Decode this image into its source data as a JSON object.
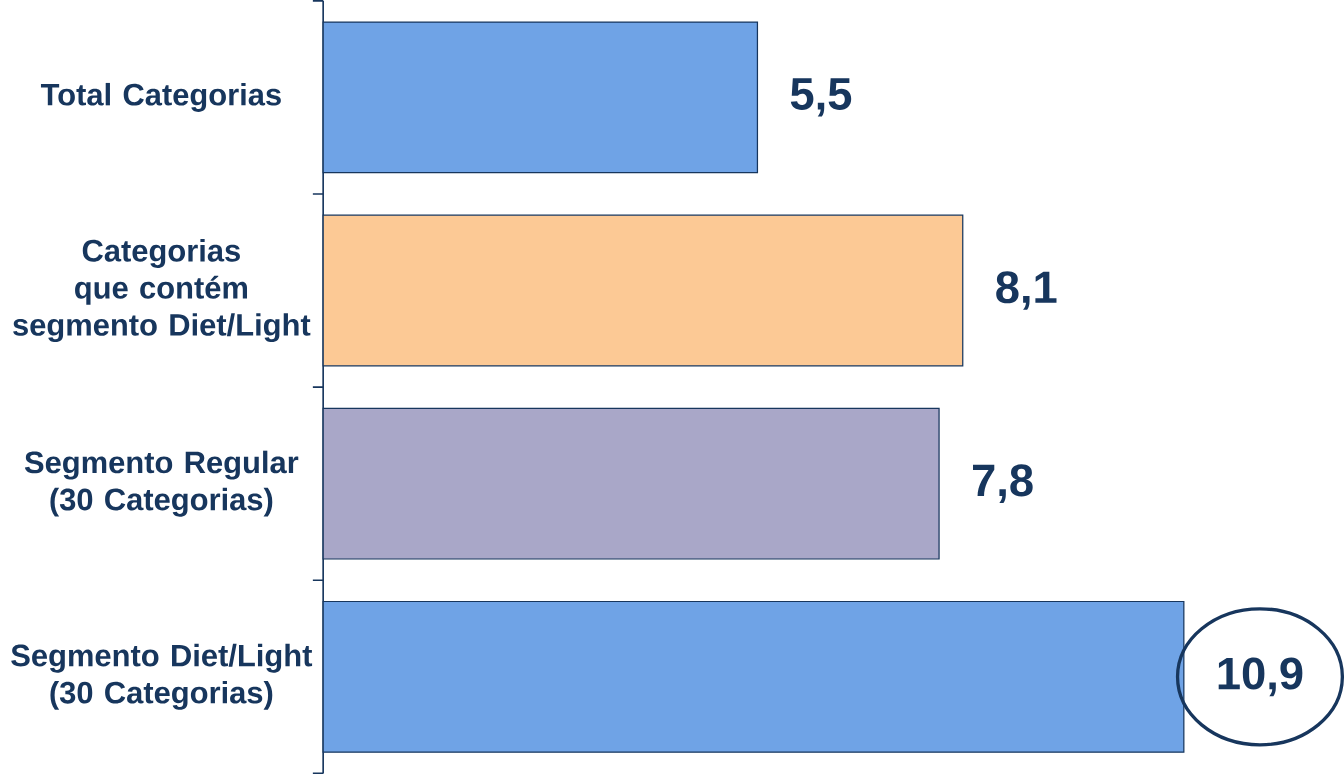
{
  "chart_data": {
    "type": "bar",
    "orientation": "horizontal",
    "categories": [
      "Total Categorias",
      "Categorias que contém segmento Diet/Light",
      "Segmento Regular (30 Categorias)",
      "Segmento Diet/Light (30 Categorias)"
    ],
    "values": [
      5.5,
      8.1,
      7.8,
      10.9
    ],
    "value_labels": [
      "5,5",
      "8,1",
      "7,8",
      "10,9"
    ],
    "colors": [
      "#6fa3e6",
      "#fcc995",
      "#a9a7c8",
      "#6fa3e6"
    ]
  }
}
